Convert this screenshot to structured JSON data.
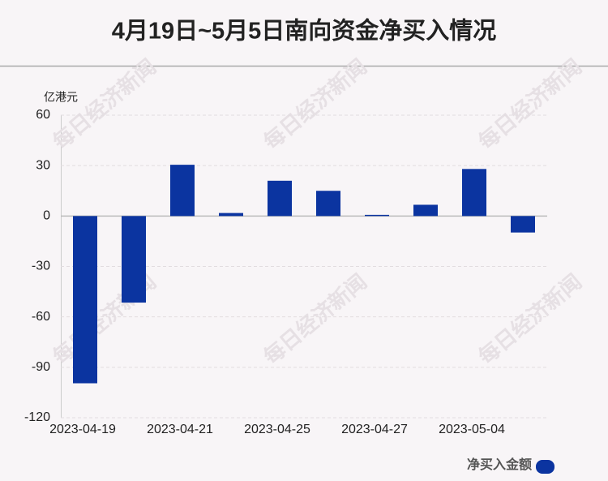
{
  "chart_data": {
    "type": "bar",
    "title": "4月19日~5月5日南向资金净买入情况",
    "y_label": "亿港元",
    "categories": [
      "2023-04-19",
      null,
      "2023-04-21",
      null,
      "2023-04-25",
      null,
      "2023-04-27",
      null,
      "2023-05-04",
      null
    ],
    "series": [
      {
        "name": "净买入金额",
        "color": "#0b34a0",
        "values": [
          -99.5,
          -51.5,
          30.5,
          1.8,
          21,
          15,
          0.7,
          6.7,
          28,
          -9.8
        ]
      }
    ],
    "ylim": [
      -120,
      60
    ],
    "yticks": [
      -120,
      -90,
      -60,
      -30,
      0,
      30,
      60
    ],
    "grid": true,
    "legend": "bottom-right",
    "watermark": "每日经济新闻"
  }
}
